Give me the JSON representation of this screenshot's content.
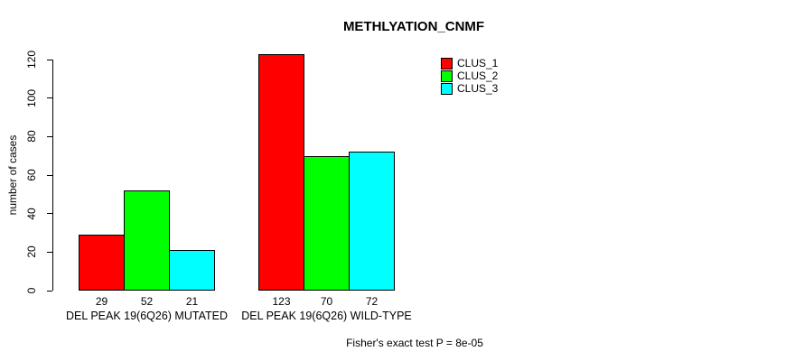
{
  "chart_data": {
    "type": "bar",
    "title": "METHLYATION_CNMF",
    "ylabel": "number of cases",
    "ylim": [
      0,
      120
    ],
    "yticks": [
      0,
      20,
      40,
      60,
      80,
      100,
      120
    ],
    "grid": false,
    "legend_position": "top-right",
    "bar_border_color": "#000000",
    "show_value_labels": true,
    "series": [
      {
        "name": "CLUS_1",
        "color": "#FF0000"
      },
      {
        "name": "CLUS_2",
        "color": "#00FF00"
      },
      {
        "name": "CLUS_3",
        "color": "#00FFFF"
      }
    ],
    "groups": [
      {
        "label": "DEL PEAK 19(6Q26) MUTATED",
        "values": [
          29,
          52,
          21
        ]
      },
      {
        "label": "DEL PEAK 19(6Q26) WILD-TYPE",
        "values": [
          123,
          70,
          72
        ]
      }
    ],
    "annotation": "Fisher's exact test P = 8e-05"
  }
}
